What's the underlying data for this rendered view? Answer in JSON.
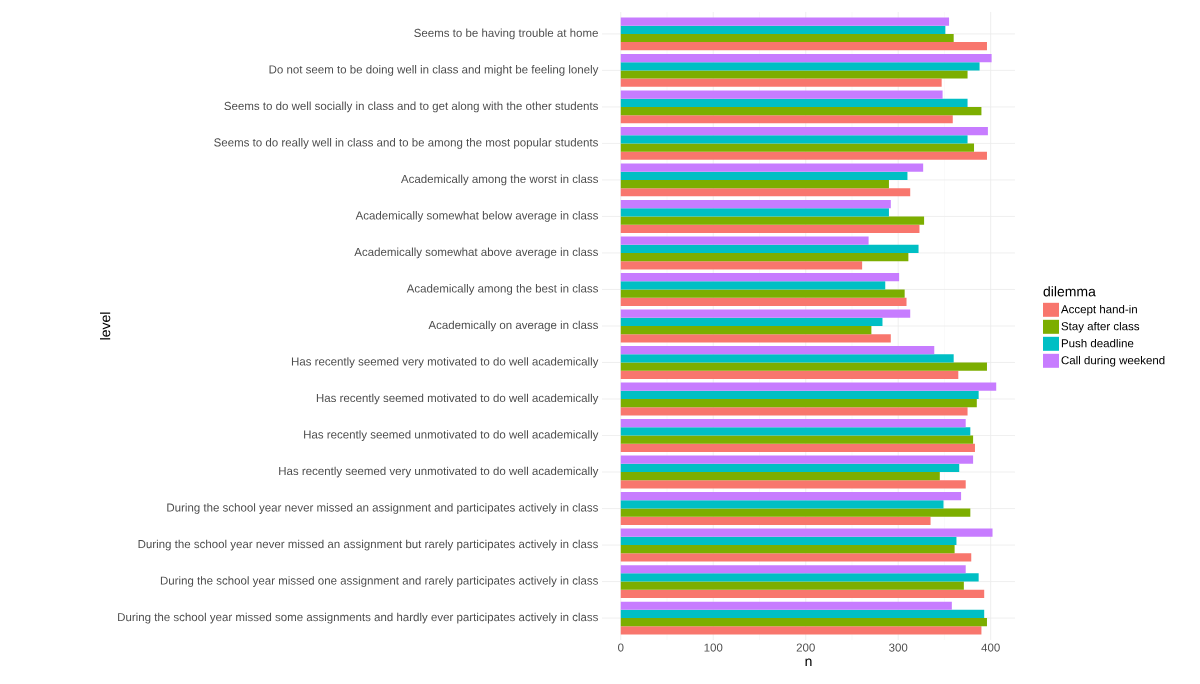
{
  "chart_data": {
    "type": "bar",
    "orientation": "horizontal",
    "xlabel": "n",
    "ylabel": "level",
    "legend_title": "dilemma",
    "categories": [
      "Seems to be having trouble at home",
      "Do not seem to be doing well in class and might be feeling lonely",
      "Seems to do well socially in class and to get along with the other students",
      "Seems to do really well in class and to be among the most popular students",
      "Academically among the worst in class",
      "Academically somewhat below average in class",
      "Academically somewhat above average in class",
      "Academically among the best in class",
      "Academically on average in class",
      "Has recently seemed very motivated to do well academically",
      "Has recently seemed motivated to do well academically",
      "Has recently seemed unmotivated to do well academically",
      "Has recently seemed very unmotivated to do well academically",
      "During the school year never missed an assignment and participates actively in class",
      "During the school year never missed an assignment but rarely participates actively in class",
      "During the school year missed one assignment and rarely participates actively in class",
      "During the school year missed some assignments and hardly ever participates actively in class"
    ],
    "series": [
      {
        "name": "Accept hand-in",
        "color": "#f8766d",
        "values": [
          396,
          347,
          359,
          396,
          313,
          323,
          261,
          309,
          292,
          365,
          375,
          383,
          373,
          335,
          379,
          393,
          390
        ]
      },
      {
        "name": "Stay after class",
        "color": "#7cae00",
        "values": [
          360,
          375,
          390,
          382,
          290,
          328,
          311,
          307,
          271,
          396,
          385,
          381,
          345,
          378,
          361,
          371,
          396
        ]
      },
      {
        "name": "Push deadline",
        "color": "#00bfc4",
        "values": [
          351,
          388,
          375,
          375,
          310,
          290,
          322,
          286,
          283,
          360,
          387,
          378,
          366,
          349,
          363,
          387,
          393
        ]
      },
      {
        "name": "Call during weekend",
        "color": "#c77cff",
        "values": [
          355,
          401,
          348,
          397,
          327,
          292,
          268,
          301,
          313,
          339,
          406,
          373,
          381,
          368,
          402,
          373,
          358
        ]
      }
    ],
    "xlim": [
      -20.3,
      426.3
    ],
    "xticks": [
      0,
      100,
      200,
      300,
      400
    ],
    "grid": true,
    "legend": "right"
  }
}
